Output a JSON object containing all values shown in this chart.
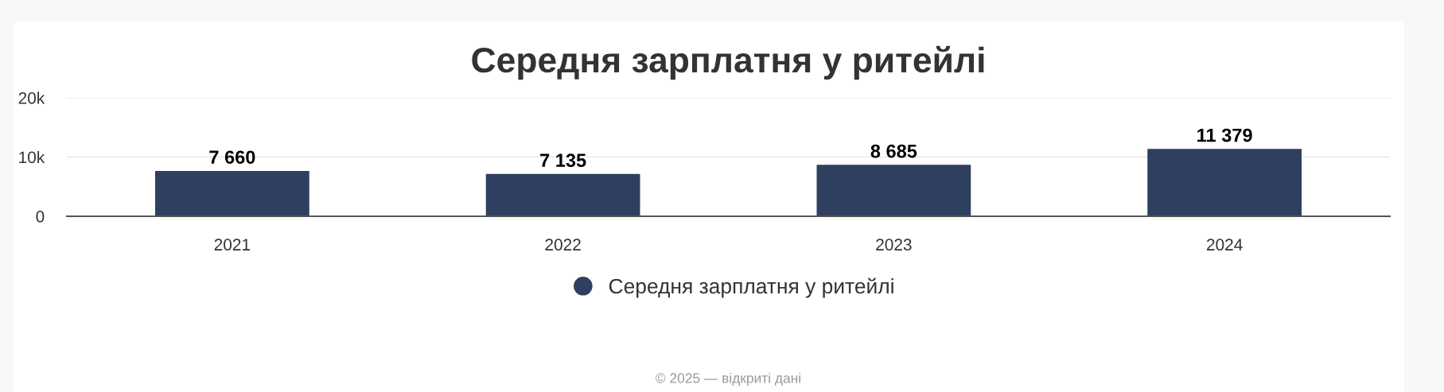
{
  "chart_data": {
    "type": "bar",
    "title": "Середня зарплатня у ритейлі",
    "categories": [
      "2021",
      "2022",
      "2023",
      "2024"
    ],
    "series": [
      {
        "name": "Середня зарплатня у ритейлі",
        "color": "#2f3f60",
        "values": [
          7660,
          7135,
          8685,
          11379
        ],
        "value_labels": [
          "7 660",
          "7 135",
          "8 685",
          "11 379"
        ]
      }
    ],
    "ylim": [
      0,
      20000
    ],
    "yticks": [
      {
        "value": 0,
        "label": "0"
      },
      {
        "value": 10000,
        "label": "10k"
      },
      {
        "value": 20000,
        "label": "20k"
      }
    ],
    "grid": "y",
    "legend": "bottom",
    "annotations": [
      "© 2025 — відкриті дані"
    ]
  }
}
